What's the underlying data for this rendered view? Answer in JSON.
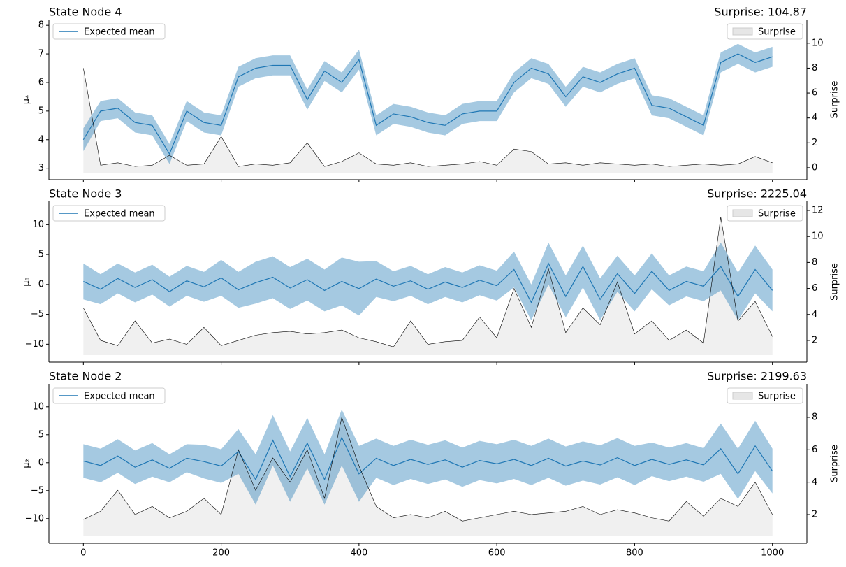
{
  "chart_data": [
    {
      "type": "line",
      "title": "State Node 4",
      "surprise_label": "Surprise: 104.87",
      "ylabel": "μ₄",
      "y2label": "Surprise",
      "legend": "upper left",
      "legend2": "upper right",
      "x": [
        0,
        25,
        50,
        75,
        100,
        125,
        150,
        175,
        200,
        225,
        250,
        275,
        300,
        325,
        350,
        375,
        400,
        425,
        450,
        475,
        500,
        525,
        550,
        575,
        600,
        625,
        650,
        675,
        700,
        725,
        750,
        775,
        800,
        825,
        850,
        875,
        900,
        925,
        950,
        975,
        1000
      ],
      "xlim": [
        -50,
        1050
      ],
      "xticks": [
        0,
        200,
        400,
        600,
        800,
        1000
      ],
      "ylim": [
        2.6,
        8.2
      ],
      "yticks": [
        3,
        4,
        5,
        6,
        7,
        8
      ],
      "y2lim": [
        -0.96,
        11.9
      ],
      "y2ticks": [
        0,
        2,
        4,
        6,
        8,
        10
      ],
      "series": [
        {
          "name": "Expected mean",
          "color": "#1f77b4",
          "values": [
            4.0,
            5.0,
            5.1,
            4.6,
            4.5,
            3.5,
            5.0,
            4.6,
            4.5,
            6.2,
            6.5,
            6.6,
            6.6,
            5.4,
            6.4,
            6.0,
            6.8,
            4.5,
            4.9,
            4.8,
            4.6,
            4.5,
            4.9,
            5.0,
            5.0,
            6.0,
            6.5,
            6.3,
            5.5,
            6.2,
            6.0,
            6.3,
            6.5,
            5.2,
            5.1,
            4.8,
            4.5,
            6.7,
            7.0,
            6.7,
            6.9
          ],
          "spread": [
            0.4,
            0.35,
            0.35,
            0.35,
            0.35,
            0.35,
            0.35,
            0.35,
            0.35,
            0.35,
            0.35,
            0.35,
            0.35,
            0.35,
            0.35,
            0.35,
            0.35,
            0.35,
            0.35,
            0.35,
            0.35,
            0.35,
            0.35,
            0.35,
            0.35,
            0.35,
            0.35,
            0.35,
            0.35,
            0.35,
            0.35,
            0.35,
            0.35,
            0.35,
            0.35,
            0.35,
            0.35,
            0.35,
            0.35,
            0.35,
            0.35
          ]
        },
        {
          "name": "Surprise",
          "color": "#000000",
          "fill": "#e6e6e6",
          "axis": "y2",
          "values": [
            8.0,
            0.2,
            0.4,
            0.1,
            0.2,
            1.0,
            0.2,
            0.3,
            2.5,
            0.1,
            0.3,
            0.2,
            0.4,
            2.0,
            0.1,
            0.5,
            1.2,
            0.3,
            0.2,
            0.4,
            0.1,
            0.2,
            0.3,
            0.5,
            0.2,
            1.5,
            1.3,
            0.3,
            0.4,
            0.2,
            0.4,
            0.3,
            0.2,
            0.3,
            0.1,
            0.2,
            0.3,
            0.2,
            0.3,
            0.9,
            0.4
          ]
        }
      ]
    },
    {
      "type": "line",
      "title": "State Node 3",
      "surprise_label": "Surprise: 2225.04",
      "ylabel": "μ₃",
      "y2label": "Surprise",
      "legend": "upper left",
      "legend2": "upper right",
      "x": [
        0,
        25,
        50,
        75,
        100,
        125,
        150,
        175,
        200,
        225,
        250,
        275,
        300,
        325,
        350,
        375,
        400,
        425,
        450,
        475,
        500,
        525,
        550,
        575,
        600,
        625,
        650,
        675,
        700,
        725,
        750,
        775,
        800,
        825,
        850,
        875,
        900,
        925,
        950,
        975,
        1000
      ],
      "xlim": [
        -50,
        1050
      ],
      "xticks": [
        0,
        200,
        400,
        600,
        800,
        1000
      ],
      "ylim": [
        -13.0,
        13.9
      ],
      "yticks": [
        {
          "value": -10,
          "label": "−10"
        },
        {
          "value": -5,
          "label": "−5"
        },
        0,
        5,
        10
      ],
      "y2lim": [
        0.33,
        12.7
      ],
      "y2ticks": [
        2,
        4,
        6,
        8,
        10,
        12
      ],
      "series": [
        {
          "name": "Expected mean",
          "color": "#1f77b4",
          "values": [
            0.5,
            -0.8,
            1.0,
            -0.5,
            0.8,
            -1.2,
            0.6,
            -0.4,
            1.1,
            -0.9,
            0.3,
            1.2,
            -0.6,
            0.8,
            -1.0,
            0.5,
            -0.7,
            0.9,
            -0.3,
            0.6,
            -0.8,
            0.4,
            -0.5,
            0.7,
            -0.2,
            2.5,
            -3.0,
            3.5,
            -2.0,
            3.0,
            -2.5,
            1.8,
            -1.5,
            2.2,
            -1.0,
            0.5,
            -0.3,
            3.0,
            -2.0,
            2.5,
            -1.0
          ],
          "spread": [
            3,
            2.5,
            2.5,
            2.5,
            2.5,
            2.5,
            2.5,
            2.5,
            3,
            3,
            3.5,
            3.5,
            3.5,
            3.5,
            3.5,
            4,
            4.5,
            3,
            2.5,
            2.5,
            2.5,
            2.5,
            2.5,
            2.5,
            2.5,
            3,
            3,
            3.5,
            3.5,
            3.5,
            3.5,
            3,
            3,
            3,
            2.5,
            2.5,
            2.5,
            4,
            4,
            4,
            3.5
          ]
        },
        {
          "name": "Surprise",
          "color": "#000000",
          "fill": "#e6e6e6",
          "axis": "y2",
          "values": [
            4.5,
            2.0,
            1.6,
            3.5,
            1.8,
            2.1,
            1.7,
            3.0,
            1.6,
            2.0,
            2.4,
            2.6,
            2.7,
            2.5,
            2.6,
            2.8,
            2.2,
            1.9,
            1.5,
            3.5,
            1.7,
            1.9,
            2.0,
            3.8,
            2.2,
            6.0,
            3.0,
            7.5,
            2.6,
            4.5,
            3.2,
            6.5,
            2.5,
            3.5,
            2.0,
            2.8,
            1.8,
            11.5,
            3.5,
            5.0,
            2.3
          ]
        }
      ]
    },
    {
      "type": "line",
      "title": "State Node 2",
      "surprise_label": "Surprise: 2199.63",
      "ylabel": "μ₂",
      "y2label": "Surprise",
      "legend": "upper left",
      "legend2": "upper right",
      "x": [
        0,
        25,
        50,
        75,
        100,
        125,
        150,
        175,
        200,
        225,
        250,
        275,
        300,
        325,
        350,
        375,
        400,
        425,
        450,
        475,
        500,
        525,
        550,
        575,
        600,
        625,
        650,
        675,
        700,
        725,
        750,
        775,
        800,
        825,
        850,
        875,
        900,
        925,
        950,
        975,
        1000
      ],
      "xlim": [
        -50,
        1050
      ],
      "xticks": [
        0,
        200,
        400,
        600,
        800,
        1000
      ],
      "ylim": [
        -14.4,
        14.1
      ],
      "yticks": [
        {
          "value": -10,
          "label": "−10"
        },
        {
          "value": -5,
          "label": "−5"
        },
        0,
        5,
        10
      ],
      "y2lim": [
        0.23,
        10.07
      ],
      "y2ticks": [
        2,
        4,
        6,
        8
      ],
      "series": [
        {
          "name": "Expected mean",
          "color": "#1f77b4",
          "values": [
            0.3,
            -0.5,
            1.2,
            -0.8,
            0.5,
            -1.0,
            0.8,
            0.2,
            -0.6,
            2.0,
            -3.0,
            4.0,
            -2.5,
            3.5,
            -3.0,
            4.5,
            -2.0,
            0.8,
            -0.5,
            0.6,
            -0.3,
            0.5,
            -0.8,
            0.4,
            -0.2,
            0.6,
            -0.5,
            0.8,
            -0.6,
            0.3,
            -0.4,
            0.9,
            -0.5,
            0.6,
            -0.3,
            0.5,
            -0.4,
            2.5,
            -2.0,
            3.0,
            -1.5
          ],
          "spread": [
            3,
            3,
            3,
            3,
            3,
            2.5,
            2.5,
            3,
            3,
            4,
            4.5,
            4.5,
            4.5,
            4.5,
            4.5,
            5,
            5,
            3.5,
            3.5,
            3.5,
            3.5,
            3.5,
            3.5,
            3.5,
            3.5,
            3.5,
            3.5,
            3.5,
            3.5,
            3.5,
            3.5,
            3.5,
            3.5,
            3,
            3,
            3,
            3,
            4.5,
            4.5,
            4.5,
            4
          ]
        },
        {
          "name": "Surprise",
          "color": "#000000",
          "fill": "#e6e6e6",
          "axis": "y2",
          "values": [
            1.7,
            2.2,
            3.5,
            2.0,
            2.5,
            1.8,
            2.2,
            3.0,
            2.0,
            6.0,
            3.5,
            5.5,
            4.0,
            6.0,
            3.0,
            8.0,
            5.0,
            2.5,
            1.8,
            2.0,
            1.8,
            2.2,
            1.6,
            1.8,
            2.0,
            2.2,
            2.0,
            2.1,
            2.2,
            2.5,
            2.0,
            2.3,
            2.1,
            1.8,
            1.6,
            2.8,
            1.9,
            3.0,
            2.5,
            4.0,
            2.0
          ]
        }
      ]
    }
  ]
}
